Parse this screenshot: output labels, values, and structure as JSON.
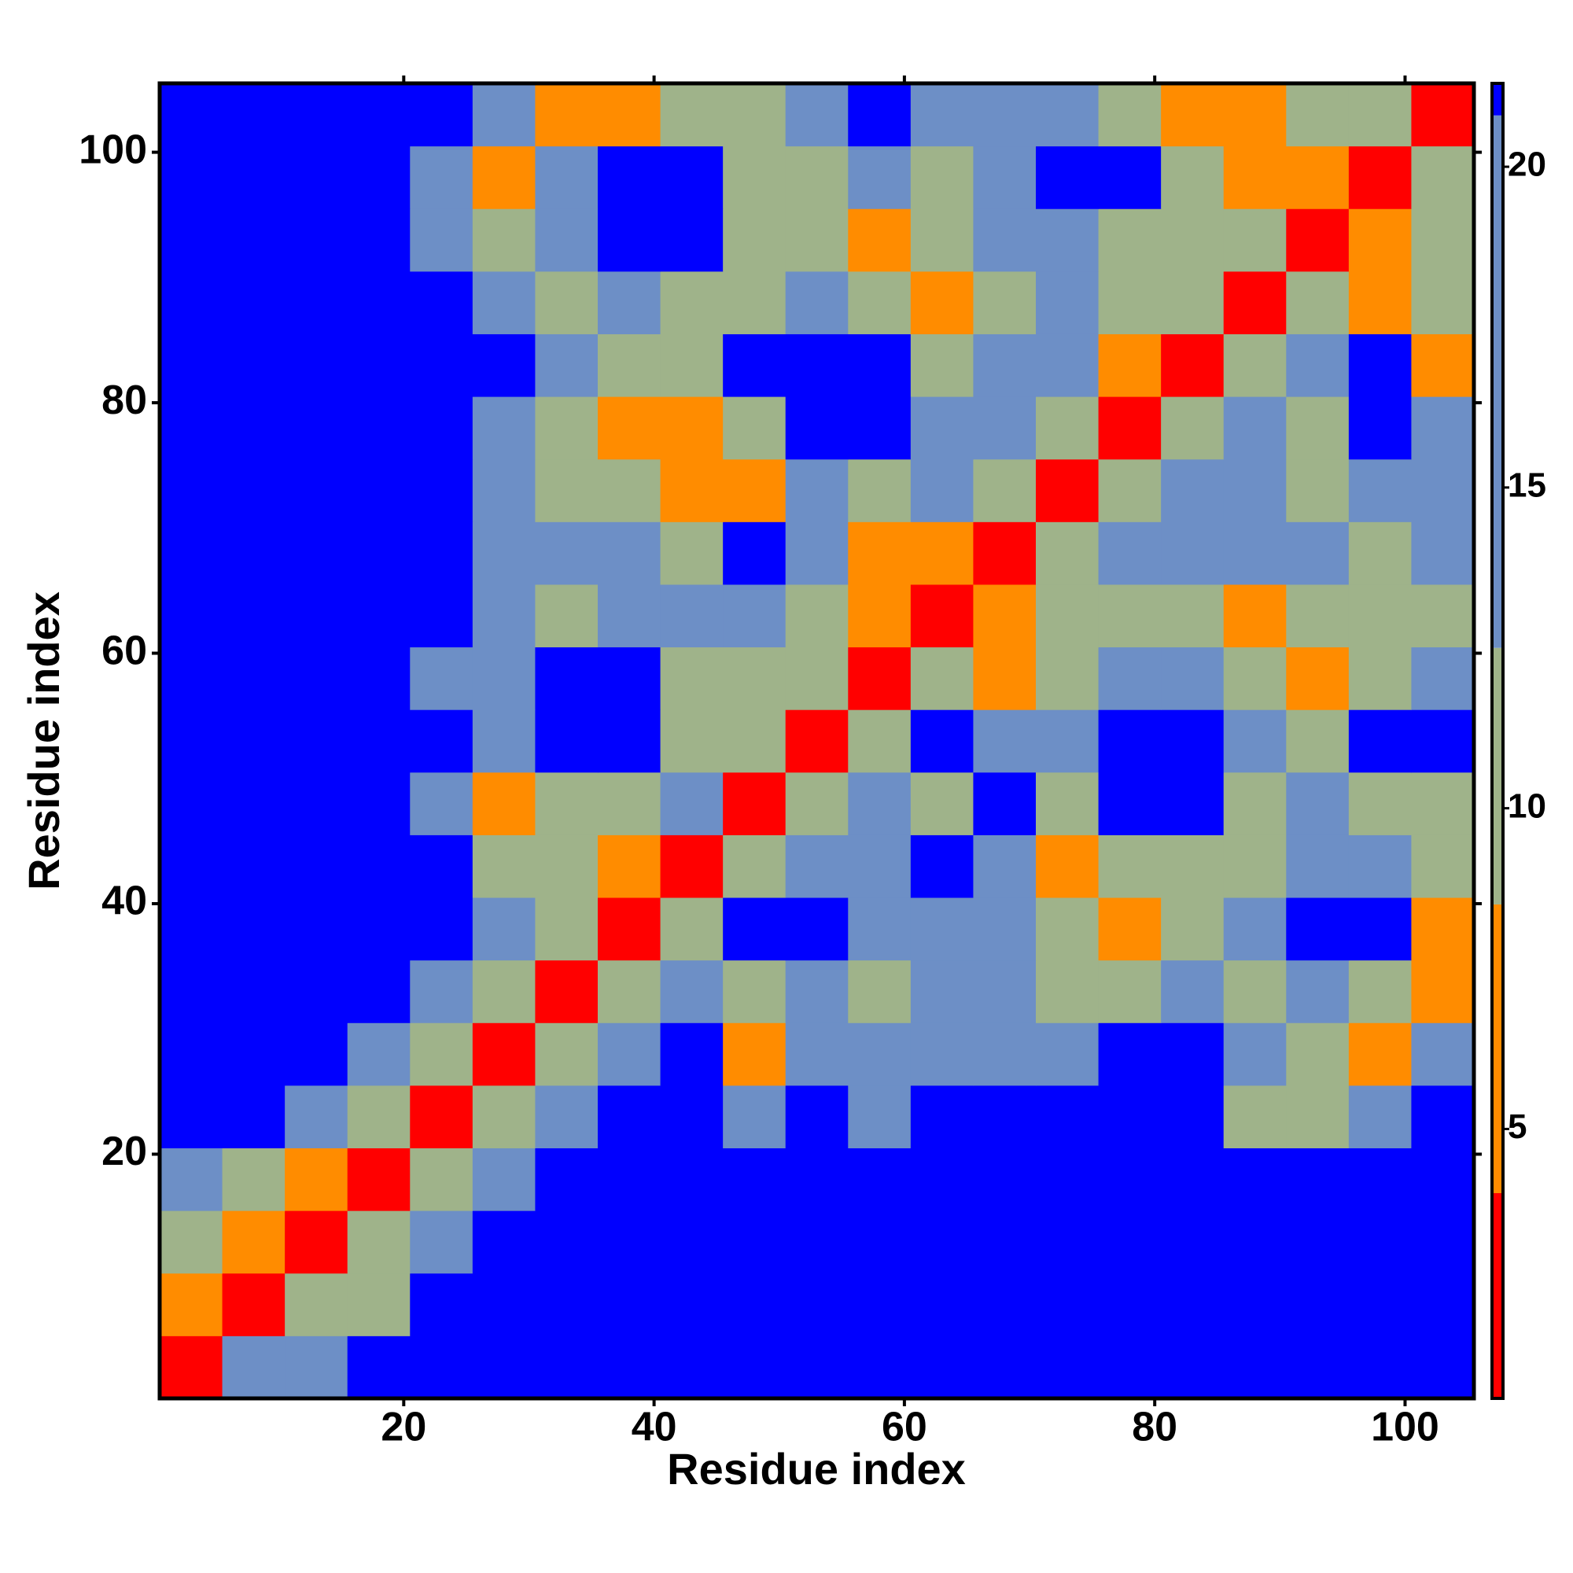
{
  "chart_data": {
    "type": "heatmap",
    "xlabel": "Residue index",
    "ylabel": "Residue index",
    "xbins": [
      0.5,
      5.5,
      10.5,
      15.5,
      20.5,
      25.5,
      30.5,
      35.5,
      40.5,
      45.5,
      50.5,
      55.5,
      60.5,
      65.5,
      70.5,
      75.5,
      80.5,
      85.5,
      90.5,
      95.5,
      100.5,
      105.5
    ],
    "ybins": [
      0.5,
      5.5,
      10.5,
      15.5,
      20.5,
      25.5,
      30.5,
      35.5,
      40.5,
      45.5,
      50.5,
      55.5,
      60.5,
      65.5,
      70.5,
      75.5,
      80.5,
      85.5,
      90.5,
      95.5,
      100.5,
      105.5
    ],
    "z": [
      [
        2,
        16,
        16,
        21,
        21,
        21,
        21,
        21,
        21,
        21,
        21,
        21,
        21,
        21,
        21,
        21,
        21,
        21,
        21,
        21,
        21
      ],
      [
        6,
        2,
        11,
        11,
        21,
        21,
        21,
        21,
        21,
        21,
        21,
        21,
        21,
        21,
        21,
        21,
        21,
        21,
        21,
        21,
        21
      ],
      [
        11,
        6,
        2,
        11,
        16,
        21,
        21,
        21,
        21,
        21,
        21,
        21,
        21,
        21,
        21,
        21,
        21,
        21,
        21,
        21,
        21
      ],
      [
        16,
        11,
        6,
        2,
        11,
        16,
        21,
        21,
        21,
        21,
        21,
        21,
        21,
        21,
        21,
        21,
        21,
        21,
        21,
        21,
        21
      ],
      [
        21,
        21,
        16,
        11,
        2,
        11,
        16,
        21,
        21,
        16,
        21,
        16,
        21,
        21,
        21,
        21,
        21,
        11,
        11,
        16,
        21
      ],
      [
        21,
        21,
        21,
        16,
        11,
        2,
        11,
        16,
        21,
        6,
        16,
        16,
        16,
        16,
        16,
        21,
        21,
        16,
        11,
        6,
        16
      ],
      [
        21,
        21,
        21,
        21,
        16,
        11,
        2,
        11,
        16,
        11,
        16,
        11,
        16,
        16,
        11,
        11,
        16,
        11,
        16,
        11,
        6
      ],
      [
        21,
        21,
        21,
        21,
        21,
        16,
        11,
        2,
        11,
        21,
        21,
        16,
        16,
        16,
        11,
        6,
        11,
        16,
        21,
        21,
        6
      ],
      [
        21,
        21,
        21,
        21,
        21,
        11,
        11,
        6,
        2,
        11,
        16,
        16,
        21,
        16,
        6,
        11,
        11,
        11,
        16,
        16,
        11
      ],
      [
        21,
        21,
        21,
        21,
        16,
        6,
        11,
        11,
        16,
        2,
        11,
        16,
        11,
        21,
        11,
        21,
        21,
        11,
        16,
        11,
        11
      ],
      [
        21,
        21,
        21,
        21,
        21,
        16,
        21,
        21,
        11,
        11,
        2,
        11,
        21,
        16,
        16,
        21,
        21,
        16,
        11,
        21,
        21
      ],
      [
        21,
        21,
        21,
        21,
        16,
        16,
        21,
        21,
        11,
        11,
        11,
        2,
        11,
        6,
        11,
        16,
        16,
        11,
        6,
        11,
        16
      ],
      [
        21,
        21,
        21,
        21,
        21,
        16,
        11,
        16,
        16,
        16,
        11,
        6,
        2,
        6,
        11,
        11,
        11,
        6,
        11,
        11,
        11
      ],
      [
        21,
        21,
        21,
        21,
        21,
        16,
        16,
        16,
        11,
        21,
        16,
        6,
        6,
        2,
        11,
        16,
        16,
        16,
        16,
        11,
        16
      ],
      [
        21,
        21,
        21,
        21,
        21,
        16,
        11,
        11,
        6,
        6,
        16,
        11,
        16,
        11,
        2,
        11,
        16,
        16,
        11,
        16,
        16
      ],
      [
        21,
        21,
        21,
        21,
        21,
        16,
        11,
        6,
        6,
        11,
        21,
        21,
        16,
        16,
        11,
        2,
        11,
        16,
        11,
        21,
        16
      ],
      [
        21,
        21,
        21,
        21,
        21,
        21,
        16,
        11,
        11,
        21,
        21,
        21,
        11,
        16,
        16,
        6,
        2,
        11,
        16,
        21,
        6
      ],
      [
        21,
        21,
        21,
        21,
        21,
        16,
        11,
        16,
        11,
        11,
        16,
        11,
        6,
        11,
        16,
        11,
        11,
        2,
        11,
        6,
        11
      ],
      [
        21,
        21,
        21,
        21,
        16,
        11,
        16,
        21,
        21,
        11,
        11,
        6,
        11,
        16,
        16,
        11,
        11,
        11,
        2,
        6,
        11
      ],
      [
        21,
        21,
        21,
        21,
        16,
        6,
        16,
        21,
        21,
        11,
        11,
        16,
        11,
        16,
        21,
        21,
        11,
        6,
        6,
        2,
        11
      ],
      [
        21,
        21,
        21,
        21,
        21,
        16,
        6,
        6,
        11,
        11,
        16,
        21,
        16,
        16,
        16,
        11,
        6,
        6,
        11,
        11,
        2
      ]
    ],
    "xlim": [
      0.5,
      105.5
    ],
    "ylim": [
      0.5,
      105.5
    ],
    "xticks": [
      20,
      40,
      60,
      80,
      100
    ],
    "yticks": [
      20,
      40,
      60,
      80,
      100
    ],
    "zlim": [
      0.8,
      21.3
    ],
    "zticks": [
      5,
      10,
      15,
      20
    ],
    "colorscale": [
      [
        0.8,
        "#ff0000"
      ],
      [
        4,
        "#ff8c00"
      ],
      [
        8.5,
        "#9fb38a"
      ],
      [
        12.5,
        "#6d8fc6"
      ],
      [
        20.8,
        "#0000ff"
      ]
    ]
  }
}
